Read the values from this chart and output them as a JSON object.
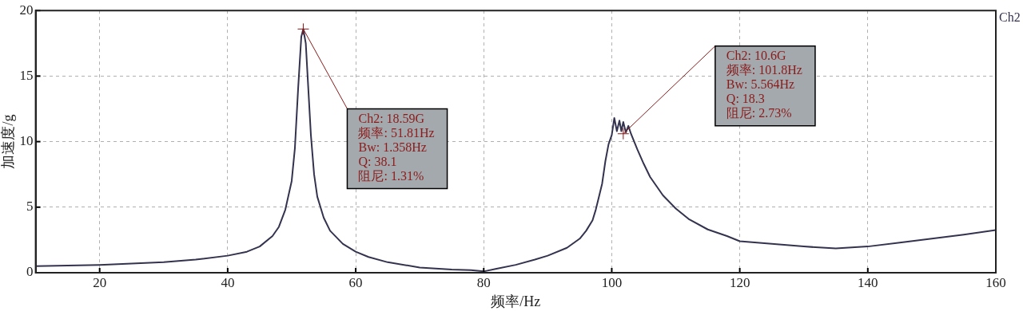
{
  "chart_data": {
    "type": "line",
    "xlabel": "频率/Hz",
    "ylabel": "加速度/g",
    "xlim": [
      10,
      160
    ],
    "xticks": [
      20,
      40,
      60,
      80,
      100,
      120,
      140,
      160
    ],
    "ylim": [
      0,
      20
    ],
    "yticks": [
      0,
      5,
      10,
      15,
      20
    ],
    "grid": true,
    "legend": "top right",
    "marker": "none",
    "line_style": "solid",
    "series": [
      {
        "name": "Ch2",
        "color": "#33334f",
        "x": [
          10,
          15,
          20,
          25,
          30,
          35,
          40,
          43,
          45,
          47,
          48,
          49,
          50,
          50.5,
          51,
          51.5,
          51.81,
          52.2,
          52.6,
          53,
          53.5,
          54,
          55,
          56,
          58,
          60,
          62,
          65,
          70,
          75,
          78,
          80,
          82,
          85,
          88,
          90,
          93,
          95,
          96,
          97,
          97.5,
          98,
          98.5,
          99,
          99.5,
          100,
          100.4,
          100.8,
          101.2,
          101.5,
          101.8,
          102.2,
          102.6,
          103,
          104,
          105,
          106,
          108,
          110,
          112,
          115,
          118,
          120,
          125,
          130,
          135,
          140,
          145,
          150,
          155,
          160
        ],
        "values": [
          0.5,
          0.55,
          0.6,
          0.7,
          0.8,
          1.0,
          1.3,
          1.6,
          2.0,
          2.8,
          3.5,
          4.8,
          7.0,
          9.5,
          14,
          18,
          18.59,
          17.5,
          14,
          10.5,
          7.5,
          5.8,
          4.2,
          3.2,
          2.2,
          1.6,
          1.2,
          0.8,
          0.4,
          0.25,
          0.2,
          0.1,
          0.3,
          0.6,
          1.0,
          1.3,
          1.9,
          2.6,
          3.2,
          4.0,
          4.8,
          5.8,
          6.8,
          8.5,
          9.8,
          10.5,
          11.8,
          10.8,
          11.6,
          10.8,
          11.5,
          10.7,
          11.2,
          10.6,
          9.4,
          8.3,
          7.3,
          5.9,
          4.9,
          4.1,
          3.3,
          2.8,
          2.4,
          2.2,
          2.0,
          1.85,
          2.0,
          2.3,
          2.6,
          2.9,
          3.25
        ]
      }
    ],
    "annotations": [
      {
        "text": "Ch2: 18.59G\n频率: 51.81Hz\nBw: 1.358Hz\nQ: 38.1\n阻尼: 1.31%",
        "x": 51.81,
        "y": 18.59
      },
      {
        "text": "Ch2: 10.6G\n频率: 101.8Hz\nBw: 5.564Hz\nQ: 18.3\n阻尼: 2.73%",
        "x": 101.8,
        "y": 10.6
      }
    ]
  }
}
